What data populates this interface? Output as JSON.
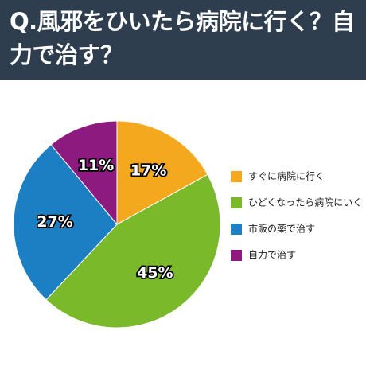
{
  "chart_data": {
    "type": "pie",
    "title": "Q.風邪をひいたら病院に行く？自力で治す？",
    "categories": [
      "すぐに病院に行く",
      "ひどくなったら病院にいく",
      "市販の薬で治す",
      "自力で治す"
    ],
    "values": [
      17,
      45,
      27,
      11
    ],
    "value_labels": [
      "17%",
      "45%",
      "27%",
      "11%"
    ],
    "colors": [
      "#f4a81d",
      "#79b92a",
      "#1d7fc3",
      "#8d1a7f"
    ],
    "legend": "right"
  }
}
